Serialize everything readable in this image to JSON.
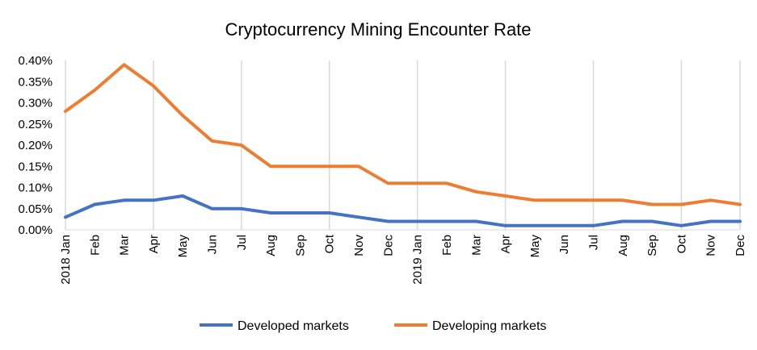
{
  "chart_data": {
    "type": "line",
    "title": "Cryptocurrency Mining Encounter Rate",
    "xlabel": "",
    "ylabel": "",
    "categories": [
      "2018 Jan",
      "Feb",
      "Mar",
      "Apr",
      "May",
      "Jun",
      "Jul",
      "Aug",
      "Sep",
      "Oct",
      "Nov",
      "Dec",
      "2019 Jan",
      "Feb",
      "Mar",
      "Apr",
      "May",
      "Jun",
      "Jul",
      "Aug",
      "Sep",
      "Oct",
      "Nov",
      "Dec"
    ],
    "y_ticks": [
      "0.00%",
      "0.05%",
      "0.10%",
      "0.15%",
      "0.20%",
      "0.25%",
      "0.30%",
      "0.35%",
      "0.40%"
    ],
    "ylim": [
      0,
      0.4
    ],
    "y_unit": "percent",
    "grid": "vertical every 3 months",
    "legend_position": "bottom",
    "series": [
      {
        "name": "Developed markets",
        "color": "#4472C4",
        "values": [
          0.03,
          0.06,
          0.07,
          0.07,
          0.08,
          0.05,
          0.05,
          0.04,
          0.04,
          0.04,
          0.03,
          0.02,
          0.02,
          0.02,
          0.02,
          0.01,
          0.01,
          0.01,
          0.01,
          0.02,
          0.02,
          0.01,
          0.02,
          0.02
        ]
      },
      {
        "name": "Developing markets",
        "color": "#ED7D31",
        "values": [
          0.28,
          0.33,
          0.39,
          0.34,
          0.27,
          0.21,
          0.2,
          0.15,
          0.15,
          0.15,
          0.15,
          0.11,
          0.11,
          0.11,
          0.09,
          0.08,
          0.07,
          0.07,
          0.07,
          0.07,
          0.06,
          0.06,
          0.07,
          0.06
        ]
      }
    ]
  }
}
